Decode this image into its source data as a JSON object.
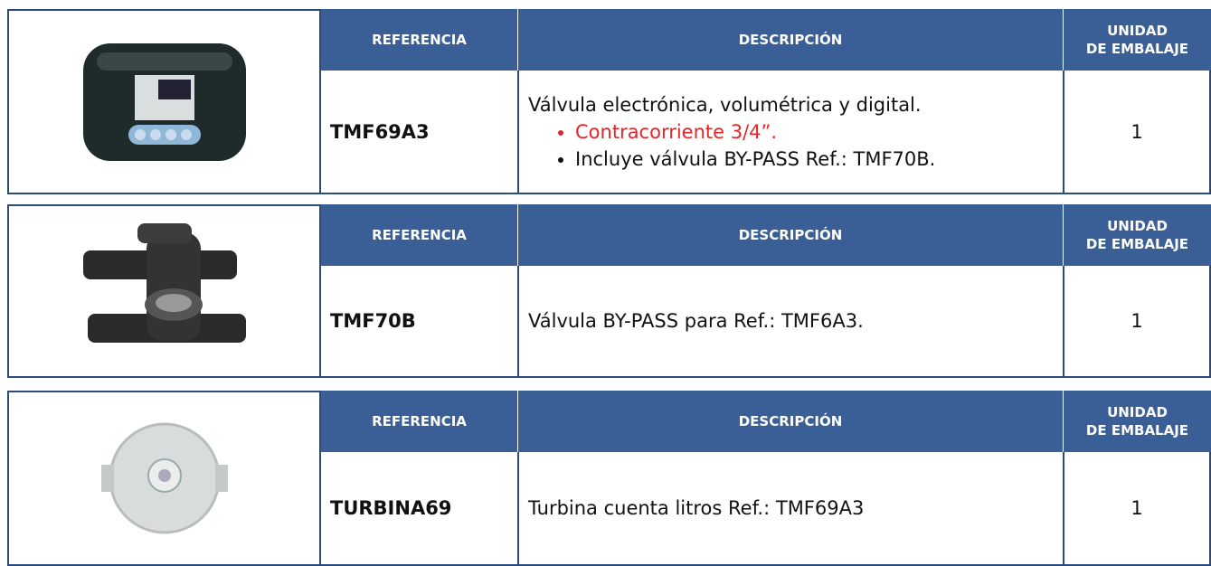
{
  "products": [
    {
      "header": {
        "reference": "REFERENCIA",
        "description": "DESCRIPCIÓN",
        "unit": [
          "UNIDAD",
          "DE EMBALAJE"
        ]
      },
      "reference": "TMF69A3",
      "description": {
        "text": "Válvula electrónica, volumétrica y digital.",
        "bullets": [
          {
            "text": "Contracorriente 3/4”.",
            "color": "#e0262b"
          },
          {
            "text": "Incluye válvula BY-PASS Ref.: TMF70B.",
            "color": "#111111"
          }
        ]
      },
      "unit": 1
    },
    {
      "header": {
        "reference": "REFERENCIA",
        "description": "DESCRIPCIÓN",
        "unit": [
          "UNIDAD",
          "DE EMBALAJE"
        ]
      },
      "reference": "TMF70B",
      "description": {
        "text": "Válvula BY-PASS para Ref.: TMF6A3.",
        "bullets": []
      },
      "unit": 1
    },
    {
      "header": {
        "reference": "REFERENCIA",
        "description": "DESCRIPCIÓN",
        "unit": [
          "UNIDAD",
          "DE EMBALAJE"
        ]
      },
      "reference": "TURBINA69",
      "description": {
        "text": "Turbina cuenta litros Ref.: TMF69A3",
        "bullets": []
      },
      "unit": 1
    }
  ]
}
